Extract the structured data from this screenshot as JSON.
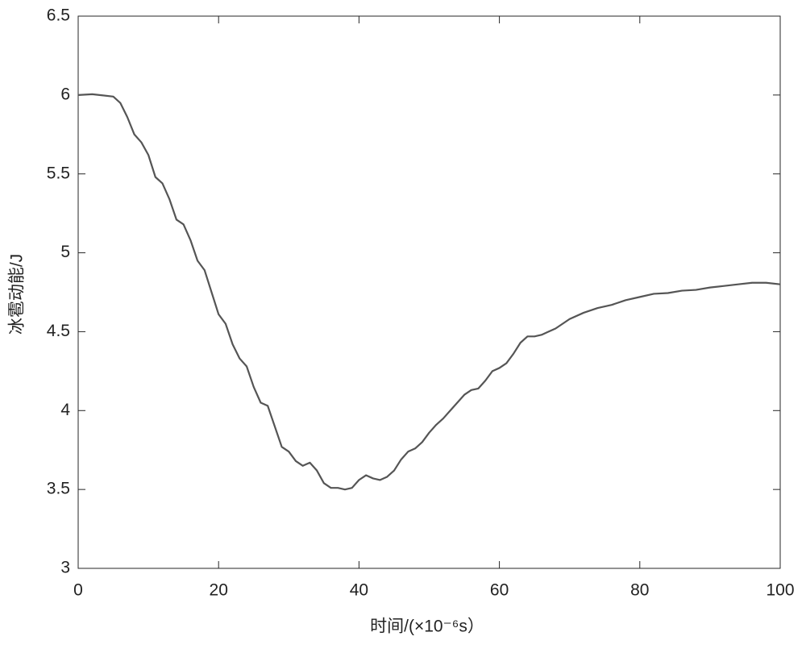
{
  "chart_data": {
    "type": "line",
    "xlabel": "时间/(×10⁻⁶s）",
    "ylabel": "冰雹动能/J",
    "x": [
      0,
      2,
      5,
      6,
      7,
      8,
      9,
      10,
      11,
      12,
      13,
      14,
      15,
      16,
      17,
      18,
      19,
      20,
      21,
      22,
      23,
      24,
      25,
      26,
      27,
      28,
      29,
      30,
      31,
      32,
      33,
      34,
      35,
      36,
      37,
      38,
      39,
      40,
      41,
      42,
      43,
      44,
      45,
      46,
      47,
      48,
      49,
      50,
      51,
      52,
      53,
      54,
      55,
      56,
      57,
      58,
      59,
      60,
      61,
      62,
      63,
      64,
      65,
      66,
      67,
      68,
      69,
      70,
      72,
      74,
      76,
      78,
      80,
      82,
      84,
      86,
      88,
      90,
      92,
      94,
      96,
      98,
      100
    ],
    "series": [
      {
        "color": "#555555",
        "values": [
          6.0,
          6.005,
          5.99,
          5.95,
          5.86,
          5.75,
          5.7,
          5.62,
          5.48,
          5.44,
          5.34,
          5.21,
          5.18,
          5.08,
          4.95,
          4.89,
          4.75,
          4.61,
          4.55,
          4.42,
          4.33,
          4.28,
          4.15,
          4.05,
          4.03,
          3.9,
          3.77,
          3.74,
          3.68,
          3.65,
          3.67,
          3.62,
          3.54,
          3.51,
          3.51,
          3.5,
          3.51,
          3.56,
          3.59,
          3.57,
          3.56,
          3.58,
          3.62,
          3.69,
          3.74,
          3.76,
          3.8,
          3.86,
          3.91,
          3.95,
          4.0,
          4.05,
          4.1,
          4.13,
          4.14,
          4.19,
          4.25,
          4.27,
          4.3,
          4.36,
          4.43,
          4.47,
          4.47,
          4.48,
          4.5,
          4.52,
          4.55,
          4.58,
          4.62,
          4.65,
          4.67,
          4.7,
          4.72,
          4.74,
          4.745,
          4.76,
          4.765,
          4.78,
          4.79,
          4.8,
          4.81,
          4.81,
          4.8
        ]
      }
    ],
    "xlim": [
      0,
      100
    ],
    "xticks": [
      0,
      20,
      40,
      60,
      80,
      100
    ],
    "ylim": [
      3,
      6.5
    ],
    "yticks": [
      3,
      3.5,
      4,
      4.5,
      5,
      5.5,
      6,
      6.5
    ],
    "grid": false
  }
}
